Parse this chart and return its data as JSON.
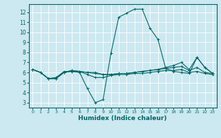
{
  "title": "",
  "xlabel": "Humidex (Indice chaleur)",
  "background_color": "#cce8f0",
  "grid_color": "#ffffff",
  "line_color": "#006666",
  "xlim": [
    -0.5,
    23.5
  ],
  "ylim": [
    2.5,
    12.8
  ],
  "xticks": [
    0,
    1,
    2,
    3,
    4,
    5,
    6,
    7,
    8,
    9,
    10,
    11,
    12,
    13,
    14,
    15,
    16,
    17,
    18,
    19,
    20,
    21,
    22,
    23
  ],
  "yticks": [
    3,
    4,
    5,
    6,
    7,
    8,
    9,
    10,
    11,
    12
  ],
  "lines": [
    {
      "x": [
        0,
        1,
        2,
        3,
        4,
        5,
        6,
        7,
        8,
        9,
        10,
        11,
        12,
        13,
        14,
        15,
        16,
        17,
        18,
        19,
        20,
        21,
        22,
        23
      ],
      "y": [
        6.3,
        6.0,
        5.4,
        5.5,
        6.1,
        6.1,
        6.0,
        4.4,
        3.0,
        3.3,
        7.9,
        11.5,
        11.9,
        12.3,
        12.3,
        10.4,
        9.3,
        6.4,
        6.1,
        6.0,
        5.9,
        7.5,
        6.5,
        5.9
      ]
    },
    {
      "x": [
        0,
        1,
        2,
        3,
        4,
        5,
        6,
        7,
        8,
        9,
        10,
        11,
        12,
        13,
        14,
        15,
        16,
        17,
        18,
        19,
        20,
        21,
        22,
        23
      ],
      "y": [
        6.3,
        6.0,
        5.4,
        5.4,
        6.0,
        6.1,
        6.1,
        5.8,
        5.5,
        5.5,
        5.7,
        5.8,
        5.8,
        5.9,
        5.9,
        6.0,
        6.1,
        6.2,
        6.2,
        6.3,
        6.0,
        6.1,
        5.9,
        5.8
      ]
    },
    {
      "x": [
        0,
        1,
        2,
        3,
        4,
        5,
        6,
        7,
        8,
        9,
        10,
        11,
        12,
        13,
        14,
        15,
        16,
        17,
        18,
        19,
        20,
        21,
        22,
        23
      ],
      "y": [
        6.3,
        6.0,
        5.4,
        5.4,
        6.0,
        6.2,
        6.1,
        6.0,
        5.9,
        5.8,
        5.8,
        5.9,
        5.9,
        6.0,
        6.1,
        6.2,
        6.3,
        6.4,
        6.5,
        6.6,
        6.2,
        6.5,
        6.0,
        5.9
      ]
    },
    {
      "x": [
        0,
        1,
        2,
        3,
        4,
        5,
        6,
        7,
        8,
        9,
        10,
        11,
        12,
        13,
        14,
        15,
        16,
        17,
        18,
        19,
        20,
        21,
        22,
        23
      ],
      "y": [
        6.3,
        6.0,
        5.4,
        5.4,
        6.0,
        6.2,
        6.1,
        6.0,
        6.0,
        5.8,
        5.8,
        5.9,
        5.9,
        6.0,
        6.1,
        6.2,
        6.3,
        6.5,
        6.7,
        7.0,
        6.3,
        7.5,
        6.5,
        5.9
      ]
    }
  ]
}
